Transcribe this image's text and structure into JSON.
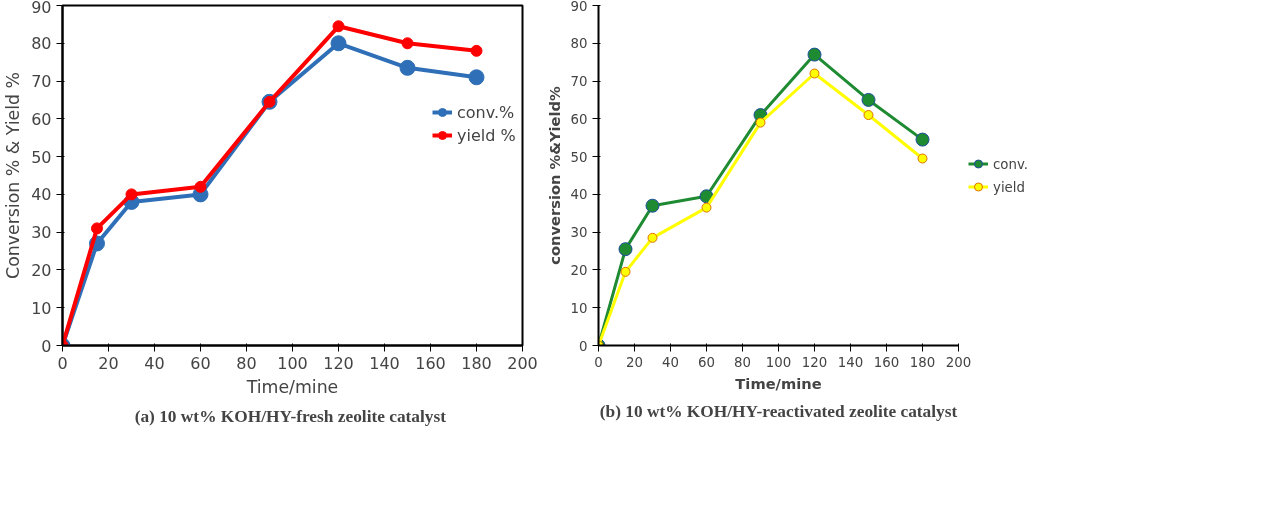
{
  "chart_data": [
    {
      "type": "line",
      "title": "(a)  10 wt% KOH/HY-fresh zeolite catalyst",
      "xlabel": "Time/mine",
      "ylabel": "Conversion % & Yield %",
      "x": [
        0,
        15,
        30,
        60,
        90,
        120,
        150,
        180
      ],
      "xlim": [
        0,
        200
      ],
      "xticks": [
        0,
        20,
        40,
        60,
        80,
        100,
        120,
        140,
        160,
        180,
        200
      ],
      "ylim": [
        0,
        90
      ],
      "yticks": [
        0,
        10,
        20,
        30,
        40,
        50,
        60,
        70,
        80,
        90
      ],
      "grid": false,
      "legend": "right",
      "marker": "circle",
      "line_style": "solid",
      "series": [
        {
          "name": "conv.%",
          "color": "#2e6fb7",
          "values": [
            0,
            27,
            38,
            40,
            64.5,
            80,
            73.5,
            71
          ]
        },
        {
          "name": "yield %",
          "color": "#ff0000",
          "values": [
            0,
            31,
            40,
            42,
            64.5,
            84.5,
            80,
            78
          ]
        }
      ]
    },
    {
      "type": "line",
      "title": "(b) 10 wt% KOH/HY-reactivated zeolite catalyst",
      "xlabel": "Time/mine",
      "ylabel": "conversion %&Yield%",
      "x": [
        0,
        15,
        30,
        60,
        90,
        120,
        150,
        180
      ],
      "xlim": [
        0,
        200
      ],
      "xticks": [
        0,
        20,
        40,
        60,
        80,
        100,
        120,
        140,
        160,
        180,
        200
      ],
      "ylim": [
        0,
        90
      ],
      "yticks": [
        0,
        10,
        20,
        30,
        40,
        50,
        60,
        70,
        80,
        90
      ],
      "grid": false,
      "legend": "right",
      "marker": "circle",
      "line_style": "solid",
      "series": [
        {
          "name": "conv.",
          "color": "#1e8a32",
          "values": [
            0,
            25.5,
            37,
            39.5,
            61,
            77,
            65,
            54.5
          ]
        },
        {
          "name": "yield",
          "color": "#ffff00",
          "values": [
            0,
            19.5,
            28.5,
            36.5,
            59,
            72,
            61,
            49.5
          ]
        }
      ]
    }
  ]
}
